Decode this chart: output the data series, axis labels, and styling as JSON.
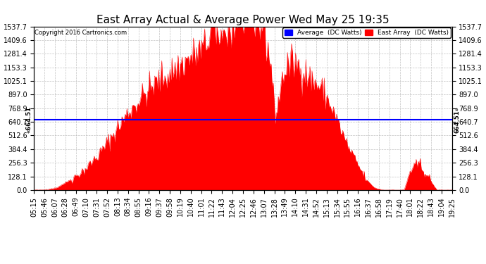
{
  "title": "East Array Actual & Average Power Wed May 25 19:35",
  "copyright": "Copyright 2016 Cartronics.com",
  "average_value": 664.51,
  "y_max": 1537.7,
  "y_ticks": [
    0.0,
    128.1,
    256.3,
    384.4,
    512.6,
    640.7,
    768.9,
    897.0,
    1025.1,
    1153.3,
    1281.4,
    1409.6,
    1537.7
  ],
  "background_color": "#ffffff",
  "plot_bg_color": "#ffffff",
  "grid_color": "#bbbbbb",
  "fill_color": "#ff0000",
  "line_color": "#ff0000",
  "avg_line_color": "#0000ff",
  "legend_avg_color": "#0000ff",
  "legend_east_color": "#ff0000",
  "title_fontsize": 11,
  "tick_fontsize": 7,
  "x_tick_labels": [
    "05:15",
    "05:46",
    "06:07",
    "06:28",
    "06:49",
    "07:10",
    "07:31",
    "07:52",
    "08:13",
    "08:34",
    "08:55",
    "09:16",
    "09:37",
    "09:58",
    "10:19",
    "10:40",
    "11:01",
    "11:22",
    "11:43",
    "12:04",
    "12:25",
    "12:46",
    "13:07",
    "13:28",
    "13:49",
    "14:10",
    "14:31",
    "14:52",
    "15:13",
    "15:34",
    "15:55",
    "16:16",
    "16:37",
    "16:58",
    "17:19",
    "17:40",
    "18:01",
    "18:22",
    "18:43",
    "19:04",
    "19:25"
  ]
}
